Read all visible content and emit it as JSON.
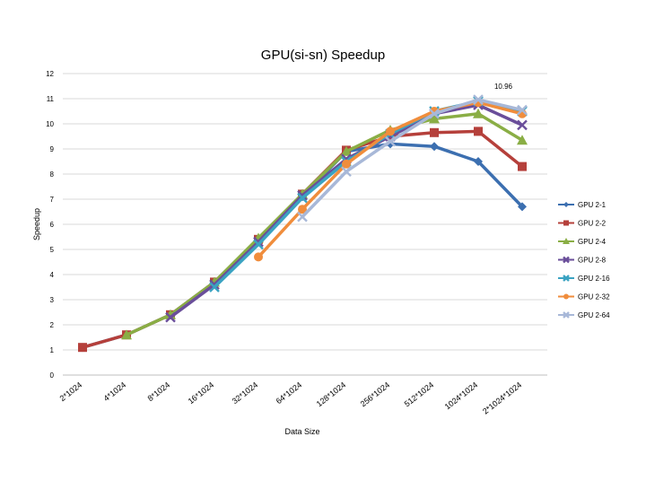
{
  "chart_data": {
    "type": "line",
    "title": "GPU(si-sn) Speedup",
    "xlabel": "Data Size",
    "ylabel": "Speedup",
    "ylim": [
      0,
      12
    ],
    "yticks": [
      "0",
      "1",
      "2",
      "3",
      "4",
      "5",
      "6",
      "7",
      "8",
      "9",
      "10",
      "11",
      "12"
    ],
    "grid": true,
    "legend_position": "right",
    "categories": [
      "2*1024",
      "4*1024",
      "8*1024",
      "16*1024",
      "32*1024",
      "64*1024",
      "128*1024",
      "256*1024",
      "512*1024",
      "1024*1024",
      "2*1024*1024"
    ],
    "annotation": {
      "text": "10.96",
      "series": "GPU 2-64",
      "index": 9
    },
    "series": [
      {
        "name": "GPU 2-1",
        "color": "#3C6FB0",
        "marker": "diamond",
        "values": [
          1.1,
          1.6,
          2.4,
          3.7,
          5.4,
          7.1,
          8.9,
          9.2,
          9.1,
          8.5,
          6.7
        ]
      },
      {
        "name": "GPU 2-2",
        "color": "#B5403B",
        "marker": "square",
        "values": [
          1.1,
          1.6,
          2.4,
          3.7,
          5.4,
          7.2,
          8.95,
          9.5,
          9.65,
          9.7,
          8.3
        ]
      },
      {
        "name": "GPU 2-4",
        "color": "#8AAE45",
        "marker": "triangle",
        "values": [
          null,
          1.6,
          2.4,
          3.7,
          5.45,
          7.2,
          8.9,
          9.75,
          10.2,
          10.4,
          9.35
        ]
      },
      {
        "name": "GPU 2-8",
        "color": "#6A4E9A",
        "marker": "x",
        "values": [
          null,
          null,
          2.3,
          3.6,
          5.3,
          7.15,
          8.6,
          9.5,
          10.4,
          10.75,
          9.95
        ]
      },
      {
        "name": "GPU 2-16",
        "color": "#3BA3C2",
        "marker": "x",
        "values": [
          null,
          null,
          null,
          3.5,
          5.2,
          7.05,
          8.5,
          9.6,
          10.5,
          10.9,
          10.5
        ]
      },
      {
        "name": "GPU 2-32",
        "color": "#F08D3C",
        "marker": "circle",
        "values": [
          null,
          null,
          null,
          null,
          4.7,
          6.6,
          8.4,
          9.7,
          10.5,
          10.85,
          10.4
        ]
      },
      {
        "name": "GPU 2-64",
        "color": "#A8B8D8",
        "marker": "x",
        "values": [
          null,
          null,
          null,
          null,
          null,
          6.3,
          8.1,
          9.3,
          10.4,
          10.96,
          10.55
        ]
      }
    ]
  }
}
